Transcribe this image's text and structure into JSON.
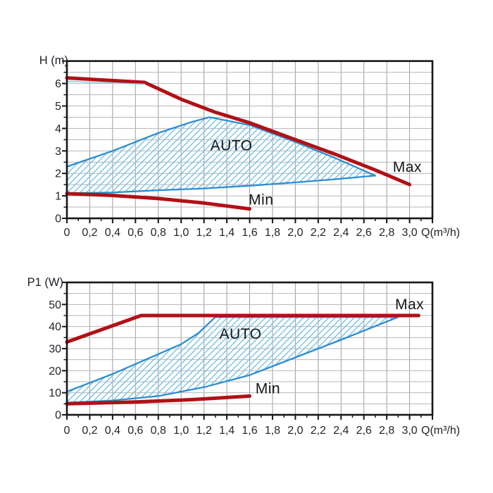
{
  "colors": {
    "curve_red": "#b01116",
    "region_blue": "#2b8ed2",
    "hatch_blue": "#79c2e4",
    "guide_cyan": "#8ecfe8",
    "grid_vertical": "#9d9da1",
    "grid_horizontal": "#b6b6ba",
    "frame": "#17171b",
    "tick_text": "#23232b",
    "annotation_text": "#161616"
  },
  "x_axis": {
    "unit_label": "Q(m³/h)",
    "tick_labels": [
      "0",
      "0,2",
      "0,4",
      "0,6",
      "0,8",
      "1,0",
      "1,2",
      "1,4",
      "1,6",
      "1,8",
      "2,0",
      "2,2",
      "2,4",
      "2,6",
      "2,8",
      "3,0"
    ],
    "range": [
      0,
      3.2
    ],
    "labeled_step": 0.2,
    "minor_step": 0.1
  },
  "chart_data": [
    {
      "type": "area",
      "title": "",
      "xlabel": "Q(m³/h)",
      "ylabel": "H (m)",
      "xlim": [
        0,
        3.2
      ],
      "ylim": [
        0,
        7
      ],
      "grid": "on",
      "legend": "none",
      "y_tick_labels": [
        "0",
        "1",
        "2",
        "3",
        "4",
        "5",
        "6"
      ],
      "y_label_step": 1,
      "y_grid_step": 0.5,
      "series": [
        {
          "name": "Max",
          "role": "curve",
          "points": [
            [
              0,
              6.25
            ],
            [
              0.68,
              6.05
            ],
            [
              1.0,
              5.3
            ],
            [
              1.3,
              4.72
            ],
            [
              1.6,
              4.25
            ],
            [
              2.0,
              3.5
            ],
            [
              2.35,
              2.85
            ],
            [
              2.7,
              2.15
            ],
            [
              3.0,
              1.5
            ]
          ]
        },
        {
          "name": "Min",
          "role": "curve",
          "points": [
            [
              0,
              1.1
            ],
            [
              0.4,
              1.02
            ],
            [
              0.8,
              0.88
            ],
            [
              1.2,
              0.68
            ],
            [
              1.6,
              0.42
            ]
          ]
        },
        {
          "name": "max-guide",
          "role": "guide",
          "points": [
            [
              0,
              6.1
            ],
            [
              0.68,
              5.97
            ]
          ]
        }
      ],
      "auto_region": {
        "label": "AUTO",
        "upper": [
          [
            0,
            2.3
          ],
          [
            0.4,
            3.0
          ],
          [
            0.8,
            3.8
          ],
          [
            1.1,
            4.3
          ],
          [
            1.25,
            4.5
          ],
          [
            1.6,
            4.15
          ],
          [
            2.0,
            3.4
          ],
          [
            2.35,
            2.68
          ],
          [
            2.7,
            1.9
          ]
        ],
        "lower": [
          [
            0,
            1.12
          ],
          [
            0.4,
            1.15
          ],
          [
            0.8,
            1.25
          ],
          [
            1.2,
            1.33
          ],
          [
            1.6,
            1.45
          ],
          [
            2.0,
            1.6
          ],
          [
            2.35,
            1.74
          ],
          [
            2.7,
            1.9
          ]
        ]
      },
      "annotations": [
        {
          "text": "AUTO",
          "x": 1.44,
          "y": 3.26
        },
        {
          "text": "Max",
          "x": 2.98,
          "y": 2.3
        },
        {
          "text": "Min",
          "x": 1.7,
          "y": 0.85
        }
      ]
    },
    {
      "type": "area",
      "title": "",
      "xlabel": "Q(m³/h)",
      "ylabel": "P1 (W)",
      "xlim": [
        0,
        3.2
      ],
      "ylim": [
        0,
        60
      ],
      "grid": "on",
      "legend": "none",
      "y_tick_labels": [
        "0",
        "10",
        "20",
        "30",
        "40",
        "50"
      ],
      "y_label_step": 10,
      "y_grid_step": 5,
      "series": [
        {
          "name": "Max",
          "role": "curve",
          "points": [
            [
              0,
              33
            ],
            [
              0.65,
              45
            ],
            [
              3.08,
              45
            ]
          ]
        },
        {
          "name": "Min",
          "role": "curve",
          "points": [
            [
              0,
              5
            ],
            [
              0.6,
              5.8
            ],
            [
              1.1,
              6.9
            ],
            [
              1.6,
              8.5
            ]
          ]
        }
      ],
      "auto_region": {
        "label": "AUTO",
        "upper": [
          [
            0,
            10.5
          ],
          [
            0.4,
            18.5
          ],
          [
            0.8,
            27.5
          ],
          [
            1.0,
            32
          ],
          [
            1.15,
            37
          ],
          [
            1.3,
            44.3
          ],
          [
            2.9,
            44.3
          ]
        ],
        "lower": [
          [
            0,
            5.5
          ],
          [
            0.4,
            6.5
          ],
          [
            0.8,
            8.5
          ],
          [
            1.2,
            12.5
          ],
          [
            1.6,
            18
          ],
          [
            2.0,
            26
          ],
          [
            2.4,
            34
          ],
          [
            2.9,
            44.3
          ]
        ]
      },
      "annotations": [
        {
          "text": "AUTO",
          "x": 1.52,
          "y": 36.8
        },
        {
          "text": "Max",
          "x": 3.0,
          "y": 50.3
        },
        {
          "text": "Min",
          "x": 1.76,
          "y": 12.2
        }
      ]
    }
  ]
}
